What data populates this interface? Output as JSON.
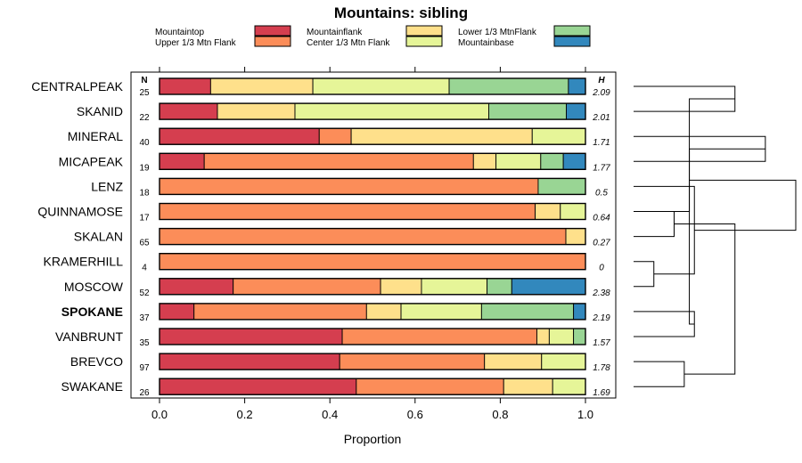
{
  "chart_data": {
    "type": "bar",
    "subtype": "stacked-horizontal-proportion",
    "title": "Mountains: sibling",
    "xlabel": "Proportion",
    "xlim": [
      0,
      1
    ],
    "xticks": [
      "0.0",
      "0.2",
      "0.4",
      "0.6",
      "0.8",
      "1.0"
    ],
    "n_header": "N",
    "h_header": "H",
    "highlighted_category": "SPOKANE",
    "legend": [
      {
        "label": "Mountaintop",
        "color": "#d53e4f"
      },
      {
        "label": "Upper 1/3 Mtn Flank",
        "color": "#fc8d59"
      },
      {
        "label": "Mountainflank",
        "color": "#fee08b"
      },
      {
        "label": "Center 1/3 Mtn Flank",
        "color": "#e6f598"
      },
      {
        "label": "Lower 1/3 MtnFlank",
        "color": "#99d594"
      },
      {
        "label": "Mountainbase",
        "color": "#3288bd"
      }
    ],
    "categories": [
      "CENTRALPEAK",
      "SKANID",
      "MINERAL",
      "MICAPEAK",
      "LENZ",
      "QUINNAMOSE",
      "SKALAN",
      "KRAMERHILL",
      "MOSCOW",
      "SPOKANE",
      "VANBRUNT",
      "BREVCO",
      "SWAKANE"
    ],
    "n": [
      "25",
      "22",
      "40",
      "19",
      "18",
      "17",
      "65",
      "4",
      "52",
      "37",
      "35",
      "97",
      "26"
    ],
    "h": [
      "2.09",
      "2.01",
      "1.71",
      "1.77",
      "0.5",
      "0.64",
      "0.27",
      "0",
      "2.38",
      "2.19",
      "1.57",
      "1.78",
      "1.69"
    ],
    "series": [
      {
        "name": "Mountaintop",
        "values": [
          0.12,
          0.136,
          0.375,
          0.105,
          0,
          0,
          0,
          0,
          0.173,
          0.081,
          0.429,
          0.423,
          0.462
        ]
      },
      {
        "name": "Upper 1/3 Mtn Flank",
        "values": [
          0,
          0,
          0.075,
          0.632,
          0.889,
          0.882,
          0.954,
          1.0,
          0.346,
          0.405,
          0.457,
          0.34,
          0.346
        ]
      },
      {
        "name": "Mountainflank",
        "values": [
          0.24,
          0.182,
          0.425,
          0.053,
          0,
          0.059,
          0.046,
          0,
          0.096,
          0.081,
          0.029,
          0.134,
          0.115
        ]
      },
      {
        "name": "Center 1/3 Mtn Flank",
        "values": [
          0.32,
          0.455,
          0.125,
          0.105,
          0,
          0.059,
          0,
          0,
          0.154,
          0.189,
          0.057,
          0.103,
          0.077
        ]
      },
      {
        "name": "Lower 1/3 MtnFlank",
        "values": [
          0.28,
          0.182,
          0,
          0.053,
          0.111,
          0,
          0,
          0,
          0.058,
          0.216,
          0.028,
          0,
          0
        ]
      },
      {
        "name": "Mountainbase",
        "values": [
          0.04,
          0.045,
          0,
          0.052,
          0,
          0,
          0,
          0,
          0.173,
          0.028,
          0,
          0,
          0
        ]
      }
    ],
    "dendrogram": {
      "merges": [
        [
          0,
          1,
          1.0
        ],
        [
          9,
          10,
          0.6
        ],
        [
          11,
          12,
          0.5
        ],
        [
          13,
          14,
          0.55
        ],
        [
          2,
          3,
          1.3
        ],
        [
          7,
          8,
          0.2
        ],
        [
          6,
          16,
          0.4
        ],
        [
          5,
          17,
          0.55
        ],
        [
          4,
          18,
          0.6
        ],
        [
          19,
          15,
          1.0
        ],
        [
          20,
          21,
          1.6
        ]
      ],
      "max_height": 1.6
    }
  }
}
